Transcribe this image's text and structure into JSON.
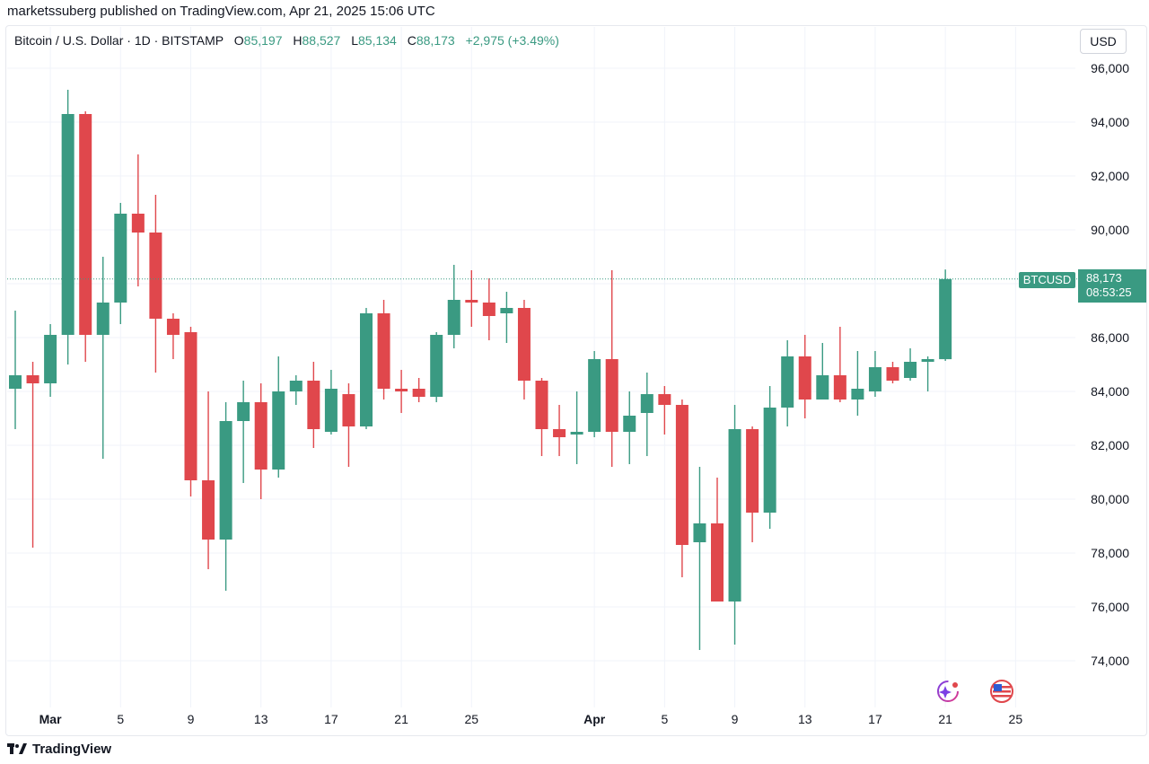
{
  "header": {
    "published": "marketssuberg published on TradingView.com, Apr 21, 2025 15:06 UTC"
  },
  "legend": {
    "symbol": "Bitcoin / U.S. Dollar · 1D · BITSTAMP",
    "o_label": "O",
    "o_value": "85,197",
    "h_label": "H",
    "h_value": "88,527",
    "l_label": "L",
    "l_value": "85,134",
    "c_label": "C",
    "c_value": "88,173",
    "change": "+2,975 (+3.49%)"
  },
  "currency_button": "USD",
  "price_tag": {
    "label": "BTCUSD",
    "price": "88,173",
    "countdown": "08:53:25"
  },
  "footer": {
    "brand": "TradingView"
  },
  "colors": {
    "up": "#3a9a82",
    "down": "#e0474c",
    "grid": "#f0f3fa"
  },
  "icons": [
    "sparkle-icon",
    "us-flag-icon",
    "tradingview-logo-icon"
  ],
  "chart_data": {
    "type": "candlestick",
    "title": "Bitcoin / U.S. Dollar · 1D · BITSTAMP",
    "ylim": [
      72800,
      97000
    ],
    "y_ticks": [
      74000,
      76000,
      78000,
      80000,
      82000,
      84000,
      86000,
      88000,
      90000,
      92000,
      94000,
      96000
    ],
    "y_tick_labels": [
      "74,000",
      "76,000",
      "78,000",
      "80,000",
      "82,000",
      "84,000",
      "86,000",
      "88,000",
      "90,000",
      "92,000",
      "94,000",
      "96,000"
    ],
    "x_ticks": [
      {
        "label": "Mar",
        "index": 2,
        "bold": true
      },
      {
        "label": "5",
        "index": 6
      },
      {
        "label": "9",
        "index": 10
      },
      {
        "label": "13",
        "index": 14
      },
      {
        "label": "17",
        "index": 18
      },
      {
        "label": "21",
        "index": 22
      },
      {
        "label": "25",
        "index": 26
      },
      {
        "label": "Apr",
        "index": 33,
        "bold": true
      },
      {
        "label": "5",
        "index": 37
      },
      {
        "label": "9",
        "index": 41
      },
      {
        "label": "13",
        "index": 45
      },
      {
        "label": "17",
        "index": 49
      },
      {
        "label": "21",
        "index": 53
      },
      {
        "label": "25",
        "index": 57
      }
    ],
    "last_price": 88173,
    "candles": [
      {
        "date": "2025-02-27",
        "o": 84100,
        "h": 87000,
        "l": 82600,
        "c": 84600
      },
      {
        "date": "2025-02-28",
        "o": 84600,
        "h": 85100,
        "l": 78200,
        "c": 84300
      },
      {
        "date": "2025-03-01",
        "o": 84300,
        "h": 86500,
        "l": 83800,
        "c": 86100
      },
      {
        "date": "2025-03-02",
        "o": 86100,
        "h": 95200,
        "l": 85000,
        "c": 94300
      },
      {
        "date": "2025-03-03",
        "o": 94300,
        "h": 94400,
        "l": 85100,
        "c": 86100
      },
      {
        "date": "2025-03-04",
        "o": 86100,
        "h": 89000,
        "l": 81500,
        "c": 87300
      },
      {
        "date": "2025-03-05",
        "o": 87300,
        "h": 91000,
        "l": 86500,
        "c": 90600
      },
      {
        "date": "2025-03-06",
        "o": 90600,
        "h": 92800,
        "l": 87900,
        "c": 89900
      },
      {
        "date": "2025-03-07",
        "o": 89900,
        "h": 91300,
        "l": 84700,
        "c": 86700
      },
      {
        "date": "2025-03-08",
        "o": 86700,
        "h": 86900,
        "l": 85200,
        "c": 86100
      },
      {
        "date": "2025-03-09",
        "o": 86200,
        "h": 86400,
        "l": 80100,
        "c": 80700
      },
      {
        "date": "2025-03-10",
        "o": 80700,
        "h": 84000,
        "l": 77400,
        "c": 78500
      },
      {
        "date": "2025-03-11",
        "o": 78500,
        "h": 83600,
        "l": 76600,
        "c": 82900
      },
      {
        "date": "2025-03-12",
        "o": 82900,
        "h": 84400,
        "l": 80600,
        "c": 83600
      },
      {
        "date": "2025-03-13",
        "o": 83600,
        "h": 84300,
        "l": 80000,
        "c": 81100
      },
      {
        "date": "2025-03-14",
        "o": 81100,
        "h": 85300,
        "l": 80800,
        "c": 84000
      },
      {
        "date": "2025-03-15",
        "o": 84000,
        "h": 84600,
        "l": 83500,
        "c": 84400
      },
      {
        "date": "2025-03-16",
        "o": 84400,
        "h": 85100,
        "l": 81900,
        "c": 82600
      },
      {
        "date": "2025-03-17",
        "o": 82500,
        "h": 84800,
        "l": 82400,
        "c": 84100
      },
      {
        "date": "2025-03-18",
        "o": 83900,
        "h": 84300,
        "l": 81200,
        "c": 82700
      },
      {
        "date": "2025-03-19",
        "o": 82700,
        "h": 87100,
        "l": 82600,
        "c": 86900
      },
      {
        "date": "2025-03-20",
        "o": 86900,
        "h": 87400,
        "l": 83700,
        "c": 84100
      },
      {
        "date": "2025-03-21",
        "o": 84100,
        "h": 84800,
        "l": 83200,
        "c": 84000
      },
      {
        "date": "2025-03-22",
        "o": 84100,
        "h": 84500,
        "l": 83600,
        "c": 83800
      },
      {
        "date": "2025-03-23",
        "o": 83800,
        "h": 86200,
        "l": 83600,
        "c": 86100
      },
      {
        "date": "2025-03-24",
        "o": 86100,
        "h": 88700,
        "l": 85600,
        "c": 87400
      },
      {
        "date": "2025-03-25",
        "o": 87400,
        "h": 88500,
        "l": 86400,
        "c": 87300
      },
      {
        "date": "2025-03-26",
        "o": 87300,
        "h": 88200,
        "l": 85900,
        "c": 86800
      },
      {
        "date": "2025-03-27",
        "o": 86900,
        "h": 87700,
        "l": 85800,
        "c": 87100
      },
      {
        "date": "2025-03-28",
        "o": 87100,
        "h": 87400,
        "l": 83700,
        "c": 84400
      },
      {
        "date": "2025-03-29",
        "o": 84400,
        "h": 84500,
        "l": 81600,
        "c": 82600
      },
      {
        "date": "2025-03-30",
        "o": 82600,
        "h": 83500,
        "l": 81600,
        "c": 82300
      },
      {
        "date": "2025-03-31",
        "o": 82400,
        "h": 84000,
        "l": 81300,
        "c": 82500
      },
      {
        "date": "2025-04-01",
        "o": 82500,
        "h": 85500,
        "l": 82300,
        "c": 85200
      },
      {
        "date": "2025-04-02",
        "o": 85200,
        "h": 88500,
        "l": 81200,
        "c": 82500
      },
      {
        "date": "2025-04-03",
        "o": 82500,
        "h": 84000,
        "l": 81300,
        "c": 83100
      },
      {
        "date": "2025-04-04",
        "o": 83200,
        "h": 84700,
        "l": 81600,
        "c": 83900
      },
      {
        "date": "2025-04-05",
        "o": 83900,
        "h": 84200,
        "l": 82400,
        "c": 83500
      },
      {
        "date": "2025-04-06",
        "o": 83500,
        "h": 83700,
        "l": 77100,
        "c": 78300
      },
      {
        "date": "2025-04-07",
        "o": 78400,
        "h": 81200,
        "l": 74400,
        "c": 79100
      },
      {
        "date": "2025-04-08",
        "o": 79100,
        "h": 80800,
        "l": 76200,
        "c": 76200
      },
      {
        "date": "2025-04-09",
        "o": 76200,
        "h": 83500,
        "l": 74600,
        "c": 82600
      },
      {
        "date": "2025-04-10",
        "o": 82600,
        "h": 82700,
        "l": 78400,
        "c": 79500
      },
      {
        "date": "2025-04-11",
        "o": 79500,
        "h": 84200,
        "l": 78900,
        "c": 83400
      },
      {
        "date": "2025-04-12",
        "o": 83400,
        "h": 85900,
        "l": 82700,
        "c": 85300
      },
      {
        "date": "2025-04-13",
        "o": 85300,
        "h": 86100,
        "l": 83000,
        "c": 83700
      },
      {
        "date": "2025-04-14",
        "o": 83700,
        "h": 85800,
        "l": 83700,
        "c": 84600
      },
      {
        "date": "2025-04-15",
        "o": 84600,
        "h": 86400,
        "l": 83600,
        "c": 83700
      },
      {
        "date": "2025-04-16",
        "o": 83700,
        "h": 85500,
        "l": 83100,
        "c": 84100
      },
      {
        "date": "2025-04-17",
        "o": 84000,
        "h": 85500,
        "l": 83800,
        "c": 84900
      },
      {
        "date": "2025-04-18",
        "o": 84900,
        "h": 85100,
        "l": 84300,
        "c": 84400
      },
      {
        "date": "2025-04-19",
        "o": 84500,
        "h": 85600,
        "l": 84400,
        "c": 85100
      },
      {
        "date": "2025-04-20",
        "o": 85100,
        "h": 85300,
        "l": 84000,
        "c": 85200
      },
      {
        "date": "2025-04-21",
        "o": 85197,
        "h": 88527,
        "l": 85134,
        "c": 88173
      }
    ]
  }
}
